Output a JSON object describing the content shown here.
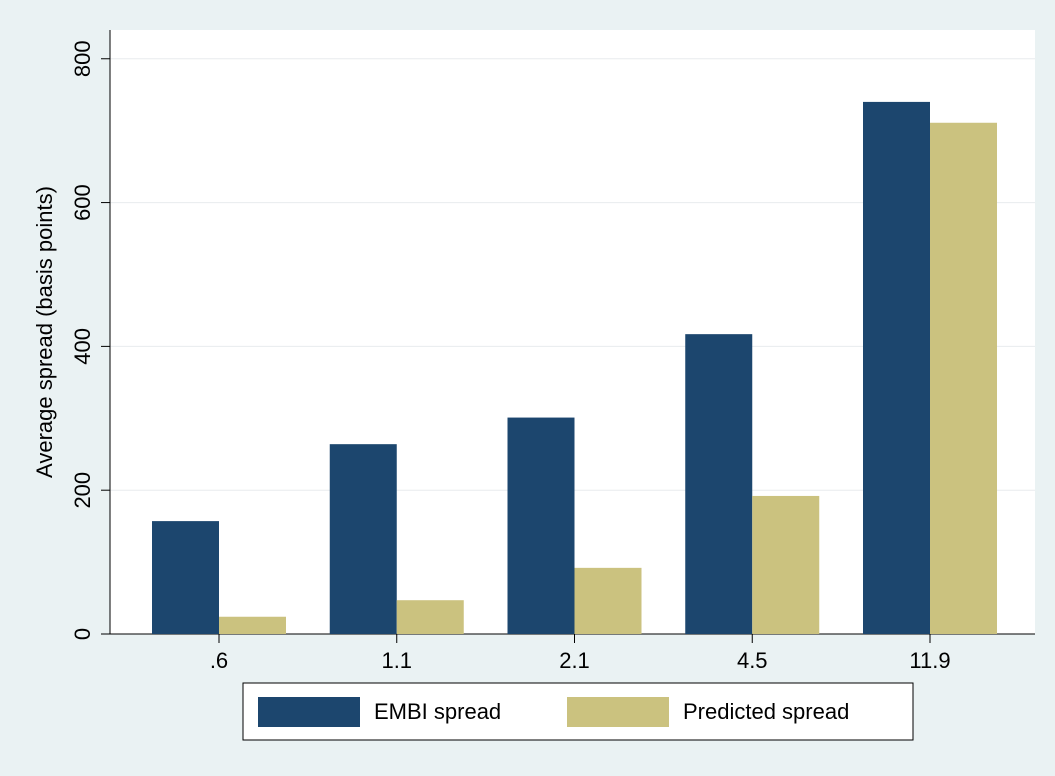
{
  "chart_data": {
    "type": "bar",
    "y_label": "Average spread (basis points)",
    "categories": [
      ".6",
      "1.1",
      "2.1",
      "4.5",
      "11.9"
    ],
    "series": [
      {
        "name": "EMBI spread",
        "color": "#1c466e",
        "values": [
          157,
          264,
          301,
          417,
          740
        ]
      },
      {
        "name": "Predicted spread",
        "color": "#cbc27f",
        "values": [
          24,
          47,
          92,
          192,
          711
        ]
      }
    ],
    "ylim": [
      0,
      840
    ],
    "yticks": [
      0,
      200,
      400,
      600,
      800
    ],
    "grid": true
  }
}
